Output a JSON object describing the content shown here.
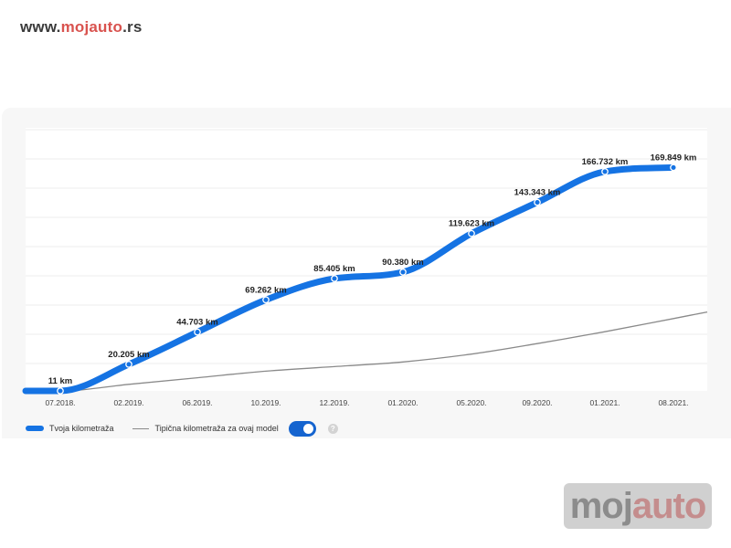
{
  "header": {
    "www": "www.",
    "brand": "mojauto",
    "tld": ".rs"
  },
  "watermark": {
    "part_a": "moj",
    "part_b": "auto"
  },
  "legend": {
    "own_label": "Tvoja kilometraža",
    "typical_label": "Tipična kilometraža za ovaj model",
    "help_icon": "?"
  },
  "colors": {
    "own_series": "#1573e3",
    "typical_series": "#8a8a8a",
    "toggle": "#1564cf"
  },
  "chart_data": {
    "type": "line",
    "title": "",
    "xlabel": "",
    "ylabel": "",
    "grid": true,
    "legend_position": "bottom-left",
    "categories": [
      "07.2018.",
      "02.2019.",
      "06.2019.",
      "10.2019.",
      "12.2019.",
      "01.2020.",
      "05.2020.",
      "09.2020.",
      "01.2021.",
      "08.2021."
    ],
    "ylim": [
      0,
      200000
    ],
    "series": [
      {
        "name": "Tvoja kilometraža",
        "values": [
          11,
          20205,
          44703,
          69262,
          85405,
          90380,
          119623,
          143343,
          166732,
          169849
        ],
        "labels": [
          "11 km",
          "20.205 km",
          "44.703 km",
          "69.262 km",
          "85.405 km",
          "90.380 km",
          "119.623 km",
          "143.343 km",
          "166.732 km",
          "169.849 km"
        ]
      },
      {
        "name": "Tipična kilometraža za ovaj model",
        "values": [
          0,
          5000,
          10000,
          15000,
          18500,
          22000,
          28000,
          36000,
          45000,
          55000
        ]
      }
    ]
  }
}
